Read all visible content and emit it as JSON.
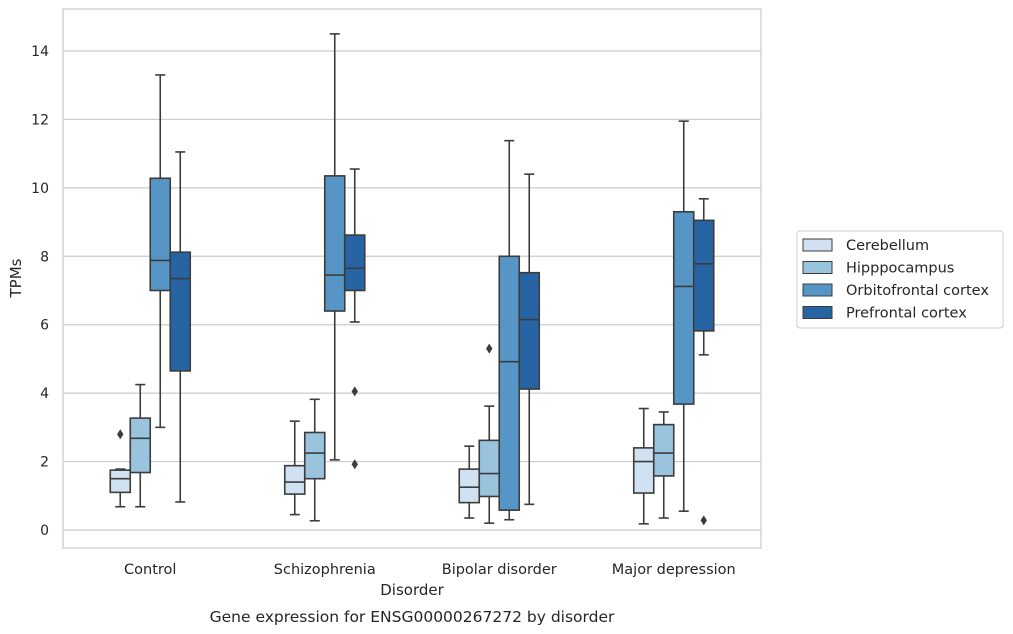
{
  "chart_data": {
    "type": "box",
    "title": "",
    "caption": "Gene expression for ENSG00000267272 by disorder",
    "xlabel": "Disorder",
    "ylabel": "TPMs",
    "ylim": [
      -0.5,
      15.2
    ],
    "yticks": [
      0,
      2,
      4,
      6,
      8,
      10,
      12,
      14
    ],
    "grid": true,
    "legend_position": "right",
    "categories": [
      "Control",
      "Schizophrenia",
      "Bipolar disorder",
      "Major depression"
    ],
    "series": [
      {
        "name": "Cerebellum",
        "color": "#d0e1f2",
        "boxes": [
          {
            "whislo": 0.68,
            "q1": 1.1,
            "med": 1.5,
            "q3": 1.75,
            "whishi": 1.78,
            "fliers": [
              2.8
            ]
          },
          {
            "whislo": 0.45,
            "q1": 1.05,
            "med": 1.4,
            "q3": 1.88,
            "whishi": 3.18,
            "fliers": []
          },
          {
            "whislo": 0.35,
            "q1": 0.8,
            "med": 1.25,
            "q3": 1.78,
            "whishi": 2.45,
            "fliers": []
          },
          {
            "whislo": 0.18,
            "q1": 1.08,
            "med": 2.0,
            "q3": 2.4,
            "whishi": 3.55,
            "fliers": []
          }
        ]
      },
      {
        "name": "Hipppocampus",
        "color": "#9ac3de",
        "boxes": [
          {
            "whislo": 0.68,
            "q1": 1.68,
            "med": 2.68,
            "q3": 3.27,
            "whishi": 4.25,
            "fliers": []
          },
          {
            "whislo": 0.27,
            "q1": 1.5,
            "med": 2.25,
            "q3": 2.85,
            "whishi": 3.82,
            "fliers": []
          },
          {
            "whislo": 0.2,
            "q1": 0.98,
            "med": 1.65,
            "q3": 2.62,
            "whishi": 3.62,
            "fliers": [
              5.3
            ]
          },
          {
            "whislo": 0.35,
            "q1": 1.58,
            "med": 2.25,
            "q3": 3.08,
            "whishi": 3.45,
            "fliers": []
          }
        ]
      },
      {
        "name": "Orbitofrontal cortex",
        "color": "#5596c7",
        "boxes": [
          {
            "whislo": 3.0,
            "q1": 7.0,
            "med": 7.88,
            "q3": 10.28,
            "whishi": 13.3,
            "fliers": []
          },
          {
            "whislo": 2.05,
            "q1": 6.4,
            "med": 7.45,
            "q3": 10.35,
            "whishi": 14.5,
            "fliers": []
          },
          {
            "whislo": 0.3,
            "q1": 0.58,
            "med": 4.92,
            "q3": 8.0,
            "whishi": 11.38,
            "fliers": []
          },
          {
            "whislo": 0.55,
            "q1": 3.68,
            "med": 7.12,
            "q3": 9.3,
            "whishi": 11.95,
            "fliers": []
          }
        ]
      },
      {
        "name": "Prefrontal cortex",
        "color": "#2664a4",
        "boxes": [
          {
            "whislo": 0.82,
            "q1": 4.65,
            "med": 7.35,
            "q3": 8.12,
            "whishi": 11.05,
            "fliers": []
          },
          {
            "whislo": 6.08,
            "q1": 7.0,
            "med": 7.65,
            "q3": 8.62,
            "whishi": 10.55,
            "fliers": [
              4.05,
              1.92
            ]
          },
          {
            "whislo": 0.75,
            "q1": 4.12,
            "med": 6.15,
            "q3": 7.52,
            "whishi": 10.4,
            "fliers": []
          },
          {
            "whislo": 5.12,
            "q1": 5.82,
            "med": 7.78,
            "q3": 9.05,
            "whishi": 9.68,
            "fliers": [
              0.28
            ]
          }
        ]
      }
    ]
  }
}
